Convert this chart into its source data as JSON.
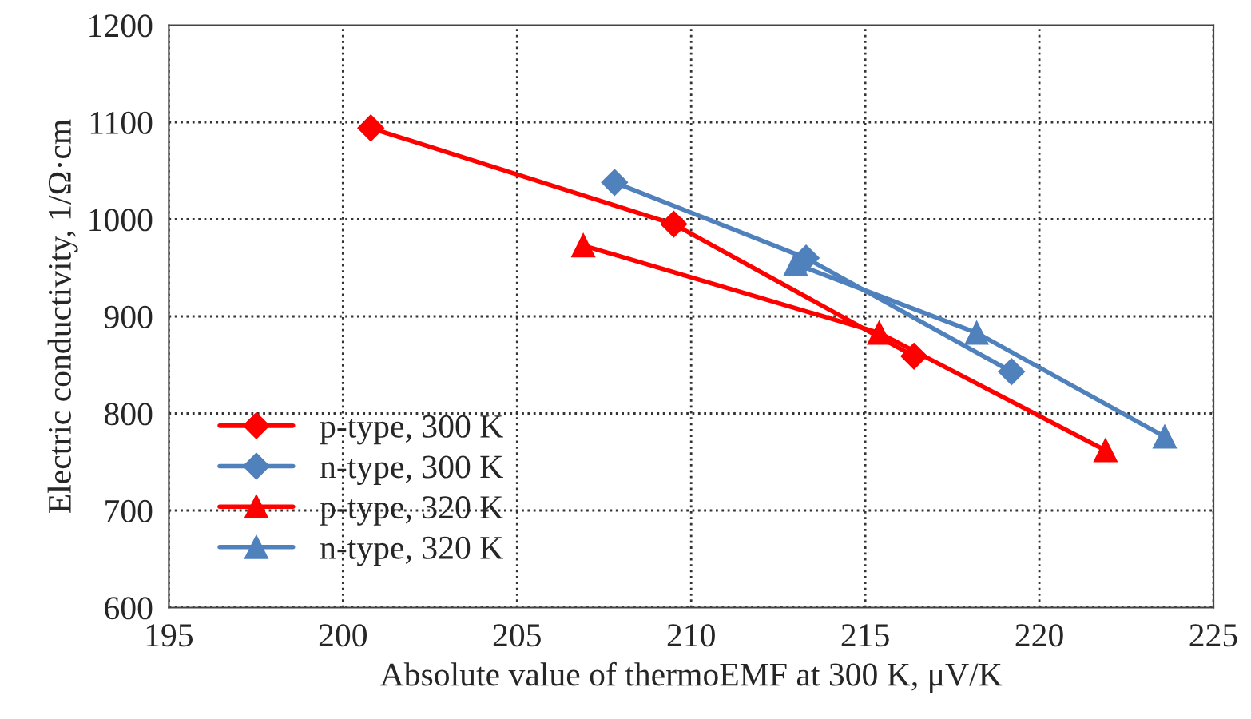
{
  "chart_data": {
    "type": "line",
    "xlabel": "Absolute value of thermoEMF at 300 K, μV/K",
    "ylabel": "Electric conductivity, 1/Ω·cm",
    "xlim": [
      195,
      225
    ],
    "xticks": [
      195,
      200,
      205,
      210,
      215,
      220,
      225
    ],
    "ylim": [
      600,
      1200
    ],
    "yticks": [
      600,
      700,
      800,
      900,
      1000,
      1100,
      1200
    ],
    "grid": true,
    "legend": "bottom left",
    "line_style": "solid",
    "series": [
      {
        "name": "p-type, 300 K",
        "color": "#ff0000",
        "marker": "diamond",
        "x": [
          200.8,
          209.5,
          216.4
        ],
        "values": [
          1094,
          995,
          859
        ]
      },
      {
        "name": "n-type, 300 K",
        "color": "#4f81bd",
        "marker": "diamond",
        "x": [
          207.8,
          213.3,
          219.2
        ],
        "values": [
          1038,
          960,
          843
        ]
      },
      {
        "name": "p-type, 320 K",
        "color": "#ff0000",
        "marker": "triangle",
        "x": [
          206.9,
          215.4,
          221.9
        ],
        "values": [
          973,
          883,
          762
        ]
      },
      {
        "name": "n-type, 320 K",
        "color": "#4f81bd",
        "marker": "triangle",
        "x": [
          213.0,
          218.2,
          223.6
        ],
        "values": [
          954,
          883,
          776
        ]
      }
    ]
  }
}
